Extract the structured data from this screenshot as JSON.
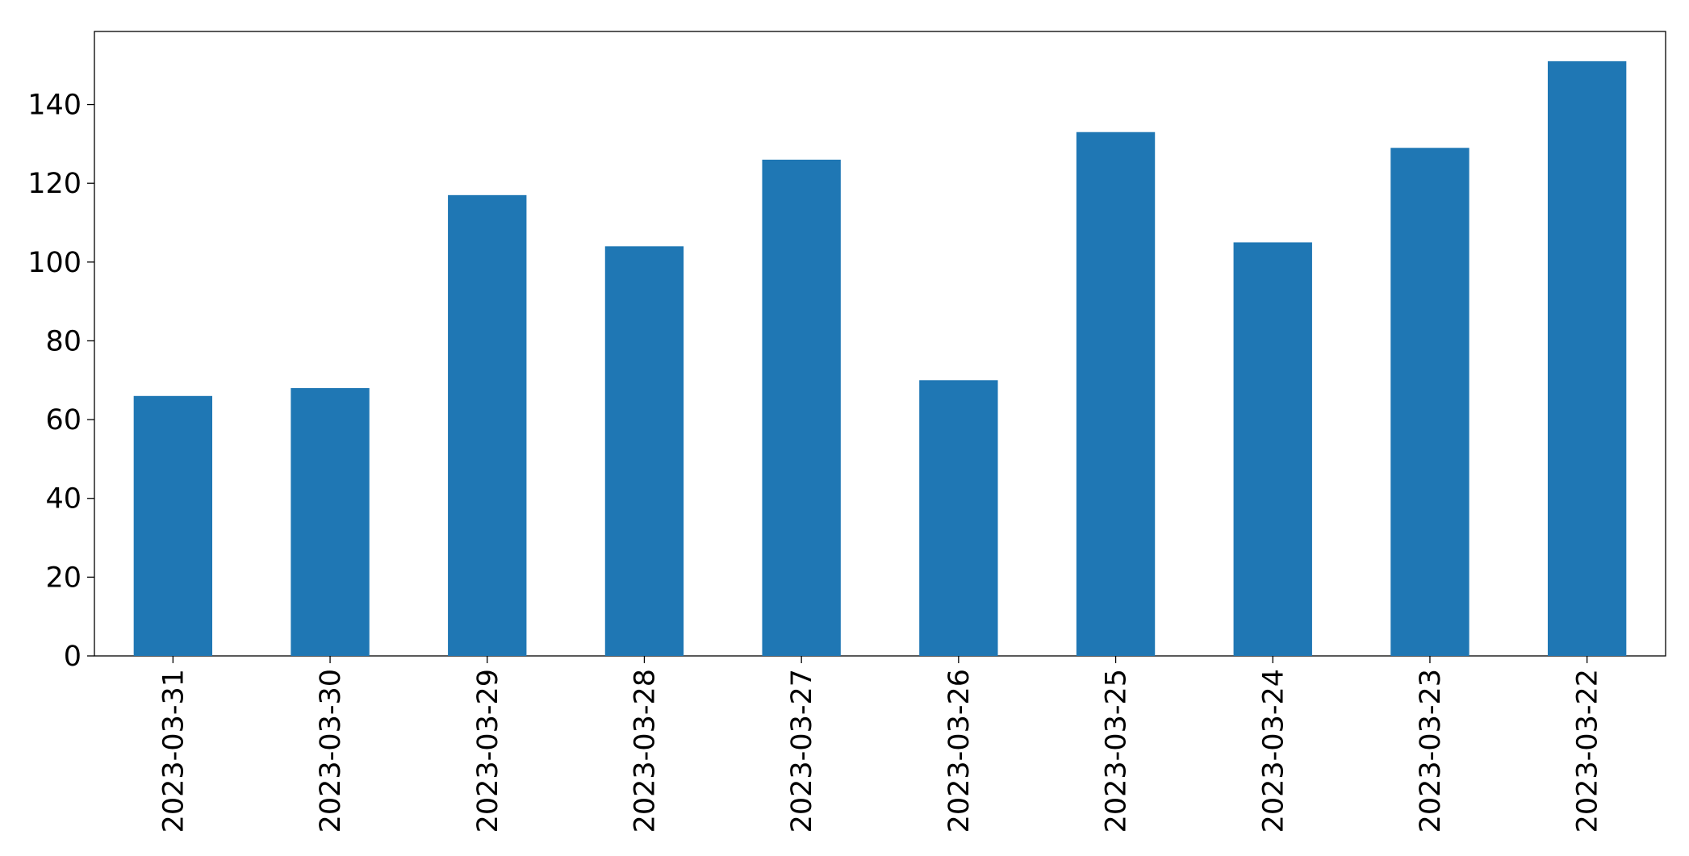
{
  "chart_data": {
    "type": "bar",
    "categories": [
      "2023-03-31",
      "2023-03-30",
      "2023-03-29",
      "2023-03-28",
      "2023-03-27",
      "2023-03-26",
      "2023-03-25",
      "2023-03-24",
      "2023-03-23",
      "2023-03-22"
    ],
    "values": [
      66,
      68,
      117,
      104,
      126,
      70,
      133,
      105,
      129,
      151
    ],
    "color": "#1f77b4",
    "ylim": [
      0,
      158.55
    ],
    "yticks": [
      0,
      20,
      40,
      60,
      80,
      100,
      120,
      140
    ],
    "grid": false
  }
}
